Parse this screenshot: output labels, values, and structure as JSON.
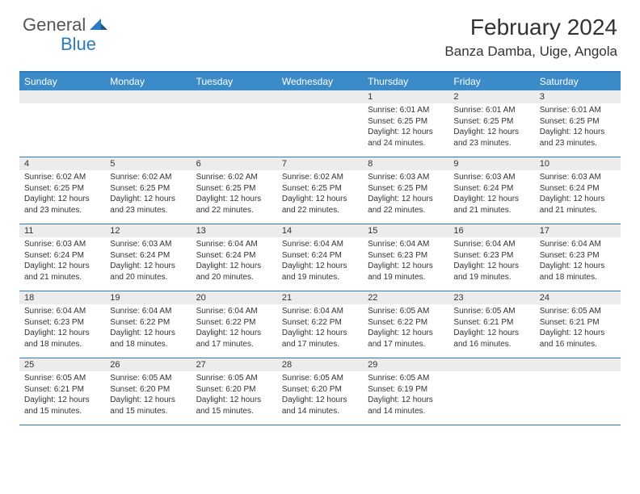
{
  "logo": {
    "text1": "General",
    "text2": "Blue"
  },
  "title": "February 2024",
  "location": "Banza Damba, Uige, Angola",
  "colors": {
    "header_bg": "#3b8bc9",
    "border": "#2b7bbf",
    "date_bg": "#ececec",
    "text": "#333333",
    "logo_gray": "#555555",
    "logo_blue": "#2b7bbf"
  },
  "day_names": [
    "Sunday",
    "Monday",
    "Tuesday",
    "Wednesday",
    "Thursday",
    "Friday",
    "Saturday"
  ],
  "weeks": [
    [
      {
        "date": "",
        "sunrise": "",
        "sunset": "",
        "daylight": ""
      },
      {
        "date": "",
        "sunrise": "",
        "sunset": "",
        "daylight": ""
      },
      {
        "date": "",
        "sunrise": "",
        "sunset": "",
        "daylight": ""
      },
      {
        "date": "",
        "sunrise": "",
        "sunset": "",
        "daylight": ""
      },
      {
        "date": "1",
        "sunrise": "Sunrise: 6:01 AM",
        "sunset": "Sunset: 6:25 PM",
        "daylight": "Daylight: 12 hours and 24 minutes."
      },
      {
        "date": "2",
        "sunrise": "Sunrise: 6:01 AM",
        "sunset": "Sunset: 6:25 PM",
        "daylight": "Daylight: 12 hours and 23 minutes."
      },
      {
        "date": "3",
        "sunrise": "Sunrise: 6:01 AM",
        "sunset": "Sunset: 6:25 PM",
        "daylight": "Daylight: 12 hours and 23 minutes."
      }
    ],
    [
      {
        "date": "4",
        "sunrise": "Sunrise: 6:02 AM",
        "sunset": "Sunset: 6:25 PM",
        "daylight": "Daylight: 12 hours and 23 minutes."
      },
      {
        "date": "5",
        "sunrise": "Sunrise: 6:02 AM",
        "sunset": "Sunset: 6:25 PM",
        "daylight": "Daylight: 12 hours and 23 minutes."
      },
      {
        "date": "6",
        "sunrise": "Sunrise: 6:02 AM",
        "sunset": "Sunset: 6:25 PM",
        "daylight": "Daylight: 12 hours and 22 minutes."
      },
      {
        "date": "7",
        "sunrise": "Sunrise: 6:02 AM",
        "sunset": "Sunset: 6:25 PM",
        "daylight": "Daylight: 12 hours and 22 minutes."
      },
      {
        "date": "8",
        "sunrise": "Sunrise: 6:03 AM",
        "sunset": "Sunset: 6:25 PM",
        "daylight": "Daylight: 12 hours and 22 minutes."
      },
      {
        "date": "9",
        "sunrise": "Sunrise: 6:03 AM",
        "sunset": "Sunset: 6:24 PM",
        "daylight": "Daylight: 12 hours and 21 minutes."
      },
      {
        "date": "10",
        "sunrise": "Sunrise: 6:03 AM",
        "sunset": "Sunset: 6:24 PM",
        "daylight": "Daylight: 12 hours and 21 minutes."
      }
    ],
    [
      {
        "date": "11",
        "sunrise": "Sunrise: 6:03 AM",
        "sunset": "Sunset: 6:24 PM",
        "daylight": "Daylight: 12 hours and 21 minutes."
      },
      {
        "date": "12",
        "sunrise": "Sunrise: 6:03 AM",
        "sunset": "Sunset: 6:24 PM",
        "daylight": "Daylight: 12 hours and 20 minutes."
      },
      {
        "date": "13",
        "sunrise": "Sunrise: 6:04 AM",
        "sunset": "Sunset: 6:24 PM",
        "daylight": "Daylight: 12 hours and 20 minutes."
      },
      {
        "date": "14",
        "sunrise": "Sunrise: 6:04 AM",
        "sunset": "Sunset: 6:24 PM",
        "daylight": "Daylight: 12 hours and 19 minutes."
      },
      {
        "date": "15",
        "sunrise": "Sunrise: 6:04 AM",
        "sunset": "Sunset: 6:23 PM",
        "daylight": "Daylight: 12 hours and 19 minutes."
      },
      {
        "date": "16",
        "sunrise": "Sunrise: 6:04 AM",
        "sunset": "Sunset: 6:23 PM",
        "daylight": "Daylight: 12 hours and 19 minutes."
      },
      {
        "date": "17",
        "sunrise": "Sunrise: 6:04 AM",
        "sunset": "Sunset: 6:23 PM",
        "daylight": "Daylight: 12 hours and 18 minutes."
      }
    ],
    [
      {
        "date": "18",
        "sunrise": "Sunrise: 6:04 AM",
        "sunset": "Sunset: 6:23 PM",
        "daylight": "Daylight: 12 hours and 18 minutes."
      },
      {
        "date": "19",
        "sunrise": "Sunrise: 6:04 AM",
        "sunset": "Sunset: 6:22 PM",
        "daylight": "Daylight: 12 hours and 18 minutes."
      },
      {
        "date": "20",
        "sunrise": "Sunrise: 6:04 AM",
        "sunset": "Sunset: 6:22 PM",
        "daylight": "Daylight: 12 hours and 17 minutes."
      },
      {
        "date": "21",
        "sunrise": "Sunrise: 6:04 AM",
        "sunset": "Sunset: 6:22 PM",
        "daylight": "Daylight: 12 hours and 17 minutes."
      },
      {
        "date": "22",
        "sunrise": "Sunrise: 6:05 AM",
        "sunset": "Sunset: 6:22 PM",
        "daylight": "Daylight: 12 hours and 17 minutes."
      },
      {
        "date": "23",
        "sunrise": "Sunrise: 6:05 AM",
        "sunset": "Sunset: 6:21 PM",
        "daylight": "Daylight: 12 hours and 16 minutes."
      },
      {
        "date": "24",
        "sunrise": "Sunrise: 6:05 AM",
        "sunset": "Sunset: 6:21 PM",
        "daylight": "Daylight: 12 hours and 16 minutes."
      }
    ],
    [
      {
        "date": "25",
        "sunrise": "Sunrise: 6:05 AM",
        "sunset": "Sunset: 6:21 PM",
        "daylight": "Daylight: 12 hours and 15 minutes."
      },
      {
        "date": "26",
        "sunrise": "Sunrise: 6:05 AM",
        "sunset": "Sunset: 6:20 PM",
        "daylight": "Daylight: 12 hours and 15 minutes."
      },
      {
        "date": "27",
        "sunrise": "Sunrise: 6:05 AM",
        "sunset": "Sunset: 6:20 PM",
        "daylight": "Daylight: 12 hours and 15 minutes."
      },
      {
        "date": "28",
        "sunrise": "Sunrise: 6:05 AM",
        "sunset": "Sunset: 6:20 PM",
        "daylight": "Daylight: 12 hours and 14 minutes."
      },
      {
        "date": "29",
        "sunrise": "Sunrise: 6:05 AM",
        "sunset": "Sunset: 6:19 PM",
        "daylight": "Daylight: 12 hours and 14 minutes."
      },
      {
        "date": "",
        "sunrise": "",
        "sunset": "",
        "daylight": ""
      },
      {
        "date": "",
        "sunrise": "",
        "sunset": "",
        "daylight": ""
      }
    ]
  ]
}
